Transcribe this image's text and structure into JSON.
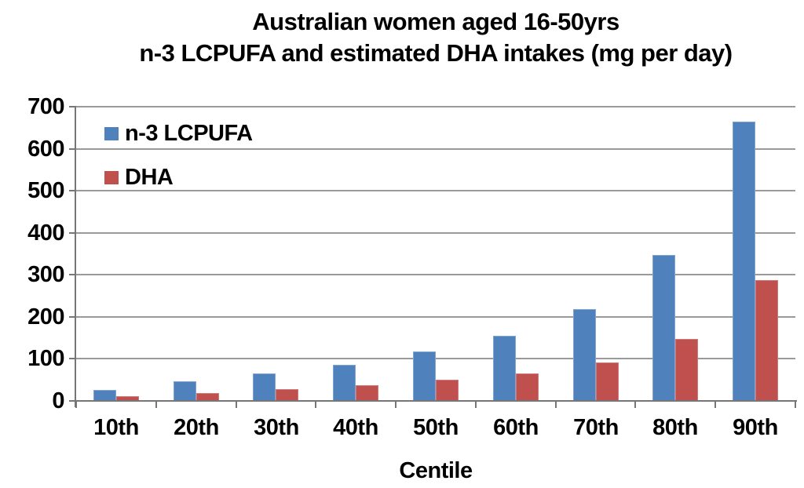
{
  "chart_data": {
    "type": "bar",
    "title_line1": "Australian women aged 16-50yrs",
    "title_line2": "n-3 LCPUFA and estimated DHA intakes (mg per day)",
    "xlabel": "Centile",
    "categories": [
      "10th",
      "20th",
      "30th",
      "40th",
      "50th",
      "60th",
      "70th",
      "80th",
      "90th"
    ],
    "series": [
      {
        "name": "n-3 LCPUFA",
        "color": "#4F81BD",
        "border_color": "#81A4CF",
        "values": [
          27,
          47,
          66,
          86,
          118,
          155,
          219,
          347,
          665
        ]
      },
      {
        "name": "DHA",
        "color": "#C0504D",
        "border_color": "#CE7977",
        "values": [
          11,
          19,
          28,
          37,
          50,
          66,
          92,
          148,
          288
        ]
      }
    ],
    "ylim": [
      0,
      700
    ],
    "yticks": [
      0,
      100,
      200,
      300,
      400,
      500,
      600,
      700
    ],
    "grid": "horizontal gridlines at every 100",
    "legend_position": "inside top-left",
    "colors": {
      "gridline": "#9A9A9A",
      "axis": "#767676",
      "text": "#000000",
      "background": "#FFFFFF"
    }
  }
}
